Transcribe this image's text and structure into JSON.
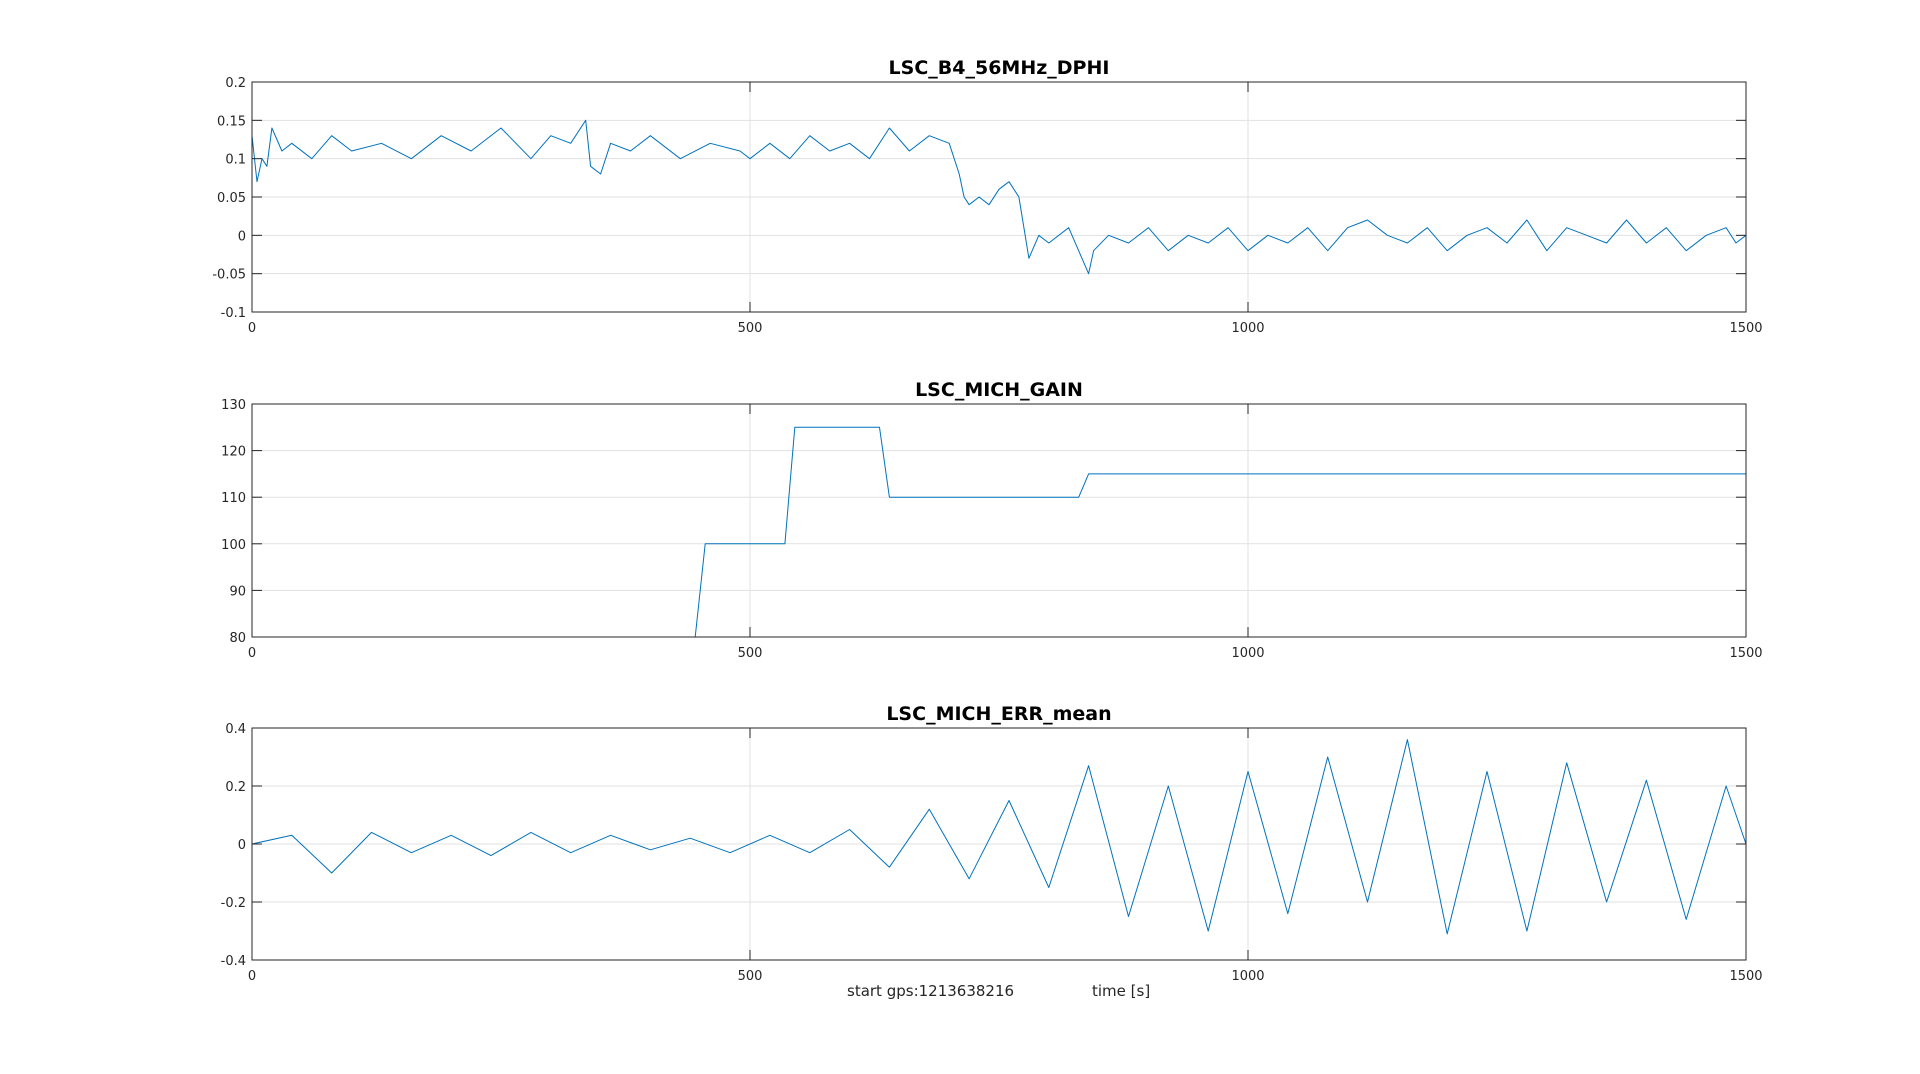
{
  "chart_data": [
    {
      "type": "line",
      "title": "LSC_B4_56MHz_DPHI",
      "xlim": [
        0,
        1500
      ],
      "ylim": [
        -0.1,
        0.2
      ],
      "xticks": [
        0,
        500,
        1000,
        1500
      ],
      "xtick_labels": [
        "0",
        "500",
        "1000",
        "1500"
      ],
      "yticks": [
        -0.1,
        -0.05,
        0,
        0.05,
        0.1,
        0.15,
        0.2
      ],
      "ytick_labels": [
        "-0.1",
        "-0.05",
        "0",
        "0.05",
        "0.1",
        "0.15",
        "0.2"
      ],
      "grid": true,
      "series": [
        {
          "color": "#0072bd",
          "x": [
            0,
            5,
            10,
            15,
            20,
            30,
            40,
            60,
            80,
            100,
            130,
            160,
            190,
            220,
            250,
            280,
            300,
            320,
            335,
            340,
            350,
            360,
            380,
            400,
            430,
            460,
            490,
            500,
            520,
            540,
            560,
            580,
            600,
            620,
            640,
            660,
            680,
            700,
            710,
            715,
            720,
            730,
            740,
            750,
            760,
            770,
            775,
            780,
            790,
            800,
            820,
            840,
            845,
            860,
            880,
            900,
            920,
            940,
            960,
            980,
            1000,
            1020,
            1040,
            1060,
            1080,
            1100,
            1120,
            1140,
            1160,
            1180,
            1200,
            1220,
            1240,
            1260,
            1280,
            1300,
            1320,
            1340,
            1360,
            1380,
            1400,
            1420,
            1440,
            1460,
            1480,
            1490,
            1500
          ],
          "y": [
            0.13,
            0.07,
            0.1,
            0.09,
            0.14,
            0.11,
            0.12,
            0.1,
            0.13,
            0.11,
            0.12,
            0.1,
            0.13,
            0.11,
            0.14,
            0.1,
            0.13,
            0.12,
            0.15,
            0.09,
            0.08,
            0.12,
            0.11,
            0.13,
            0.1,
            0.12,
            0.11,
            0.1,
            0.12,
            0.1,
            0.13,
            0.11,
            0.12,
            0.1,
            0.14,
            0.11,
            0.13,
            0.12,
            0.08,
            0.05,
            0.04,
            0.05,
            0.04,
            0.06,
            0.07,
            0.05,
            0.01,
            -0.03,
            0.0,
            -0.01,
            0.01,
            -0.05,
            -0.02,
            0.0,
            -0.01,
            0.01,
            -0.02,
            0.0,
            -0.01,
            0.01,
            -0.02,
            0.0,
            -0.01,
            0.01,
            -0.02,
            0.01,
            0.02,
            0.0,
            -0.01,
            0.01,
            -0.02,
            0.0,
            0.01,
            -0.01,
            0.02,
            -0.02,
            0.01,
            0.0,
            -0.01,
            0.02,
            -0.01,
            0.01,
            -0.02,
            0.0,
            0.01,
            -0.01,
            0.0
          ]
        }
      ]
    },
    {
      "type": "line",
      "title": "LSC_MICH_GAIN",
      "xlim": [
        0,
        1500
      ],
      "ylim": [
        80,
        130
      ],
      "xticks": [
        0,
        500,
        1000,
        1500
      ],
      "xtick_labels": [
        "0",
        "500",
        "1000",
        "1500"
      ],
      "yticks": [
        80,
        90,
        100,
        110,
        120,
        130
      ],
      "ytick_labels": [
        "80",
        "90",
        "100",
        "110",
        "120",
        "130"
      ],
      "grid": true,
      "series": [
        {
          "color": "#0072bd",
          "x": [
            0,
            445,
            455,
            535,
            545,
            630,
            640,
            830,
            840,
            1500
          ],
          "y": [
            80,
            80,
            100,
            100,
            125,
            125,
            110,
            110,
            115,
            115
          ]
        }
      ]
    },
    {
      "type": "line",
      "title": "LSC_MICH_ERR_mean",
      "xlim": [
        0,
        1500
      ],
      "ylim": [
        -0.4,
        0.4
      ],
      "xticks": [
        0,
        500,
        1000,
        1500
      ],
      "xtick_labels": [
        "0",
        "500",
        "1000",
        "1500"
      ],
      "yticks": [
        -0.4,
        -0.2,
        0,
        0.2,
        0.4
      ],
      "ytick_labels": [
        "-0.4",
        "-0.2",
        "0",
        "0.2",
        "0.4"
      ],
      "grid": true,
      "series": [
        {
          "color": "#0072bd",
          "x": [
            0,
            40,
            80,
            120,
            160,
            200,
            240,
            280,
            320,
            360,
            400,
            440,
            480,
            520,
            560,
            600,
            640,
            680,
            720,
            760,
            800,
            840,
            880,
            920,
            960,
            1000,
            1040,
            1080,
            1120,
            1160,
            1200,
            1240,
            1280,
            1320,
            1360,
            1400,
            1440,
            1480,
            1500
          ],
          "y": [
            0.0,
            0.03,
            -0.1,
            0.04,
            -0.03,
            0.03,
            -0.04,
            0.04,
            -0.03,
            0.03,
            -0.02,
            0.02,
            -0.03,
            0.03,
            -0.03,
            0.05,
            -0.08,
            0.12,
            -0.12,
            0.15,
            -0.15,
            0.27,
            -0.25,
            0.2,
            -0.3,
            0.25,
            -0.24,
            0.3,
            -0.2,
            0.36,
            -0.31,
            0.25,
            -0.3,
            0.28,
            -0.2,
            0.22,
            -0.26,
            0.2,
            0.0
          ]
        }
      ]
    }
  ],
  "footer": {
    "start_gps": "start gps:1213638216",
    "time_label": "time [s]"
  }
}
